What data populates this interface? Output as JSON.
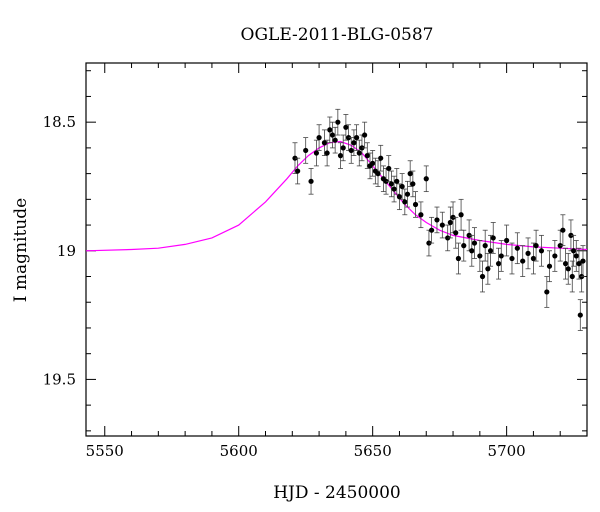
{
  "chart_data": {
    "type": "scatter",
    "title": "OGLE-2011-BLG-0587",
    "xlabel": "HJD - 2450000",
    "ylabel": "I magnitude",
    "xlim": [
      5543,
      5730
    ],
    "ylim": [
      19.72,
      18.27
    ],
    "y_inverted": true,
    "xticks": [
      5550,
      5600,
      5650,
      5700
    ],
    "yticks": [
      18.5,
      19,
      19.5
    ],
    "ytick_labels": [
      "18.5",
      "19",
      "19.5"
    ],
    "grid": false,
    "legend": "none",
    "colors": {
      "points": "#000000",
      "model": "#ff00ff"
    },
    "series": [
      {
        "type": "scatter",
        "points": [
          [
            5621,
            18.64,
            0.06
          ],
          [
            5622,
            18.69,
            0.05
          ],
          [
            5625,
            18.61,
            0.05
          ],
          [
            5627,
            18.73,
            0.05
          ],
          [
            5629,
            18.62,
            0.05
          ],
          [
            5630,
            18.56,
            0.05
          ],
          [
            5632,
            18.58,
            0.05
          ],
          [
            5633,
            18.62,
            0.05
          ],
          [
            5634,
            18.53,
            0.05
          ],
          [
            5635,
            18.55,
            0.05
          ],
          [
            5636,
            18.57,
            0.05
          ],
          [
            5637,
            18.5,
            0.05
          ],
          [
            5638,
            18.63,
            0.05
          ],
          [
            5639,
            18.6,
            0.05
          ],
          [
            5640,
            18.52,
            0.05
          ],
          [
            5641,
            18.56,
            0.05
          ],
          [
            5642,
            18.61,
            0.05
          ],
          [
            5643,
            18.58,
            0.05
          ],
          [
            5644,
            18.56,
            0.05
          ],
          [
            5645,
            18.62,
            0.05
          ],
          [
            5646,
            18.6,
            0.05
          ],
          [
            5647,
            18.55,
            0.05
          ],
          [
            5648,
            18.63,
            0.05
          ],
          [
            5649,
            18.67,
            0.05
          ],
          [
            5650,
            18.66,
            0.05
          ],
          [
            5651,
            18.69,
            0.05
          ],
          [
            5652,
            18.7,
            0.05
          ],
          [
            5653,
            18.64,
            0.05
          ],
          [
            5654,
            18.72,
            0.05
          ],
          [
            5655,
            18.73,
            0.05
          ],
          [
            5656,
            18.68,
            0.05
          ],
          [
            5657,
            18.74,
            0.05
          ],
          [
            5658,
            18.76,
            0.05
          ],
          [
            5659,
            18.73,
            0.05
          ],
          [
            5660,
            18.79,
            0.05
          ],
          [
            5661,
            18.75,
            0.05
          ],
          [
            5662,
            18.81,
            0.05
          ],
          [
            5663,
            18.78,
            0.05
          ],
          [
            5664,
            18.7,
            0.05
          ],
          [
            5665,
            18.74,
            0.05
          ],
          [
            5666,
            18.82,
            0.05
          ],
          [
            5668,
            18.86,
            0.05
          ],
          [
            5670,
            18.72,
            0.05
          ],
          [
            5671,
            18.97,
            0.05
          ],
          [
            5672,
            18.92,
            0.05
          ],
          [
            5674,
            18.88,
            0.05
          ],
          [
            5676,
            18.9,
            0.05
          ],
          [
            5678,
            18.95,
            0.05
          ],
          [
            5679,
            18.89,
            0.06
          ],
          [
            5680,
            18.87,
            0.06
          ],
          [
            5681,
            18.93,
            0.06
          ],
          [
            5682,
            19.03,
            0.06
          ],
          [
            5683,
            18.86,
            0.06
          ],
          [
            5684,
            18.98,
            0.06
          ],
          [
            5686,
            18.94,
            0.06
          ],
          [
            5687,
            19.0,
            0.06
          ],
          [
            5688,
            18.97,
            0.06
          ],
          [
            5690,
            19.02,
            0.06
          ],
          [
            5691,
            19.1,
            0.06
          ],
          [
            5692,
            18.98,
            0.06
          ],
          [
            5693,
            19.07,
            0.06
          ],
          [
            5694,
            19.0,
            0.06
          ],
          [
            5695,
            18.95,
            0.06
          ],
          [
            5697,
            19.05,
            0.06
          ],
          [
            5698,
            19.02,
            0.06
          ],
          [
            5700,
            18.96,
            0.06
          ],
          [
            5702,
            19.03,
            0.06
          ],
          [
            5704,
            18.99,
            0.06
          ],
          [
            5706,
            19.04,
            0.06
          ],
          [
            5708,
            19.01,
            0.06
          ],
          [
            5710,
            19.03,
            0.06
          ],
          [
            5711,
            18.98,
            0.06
          ],
          [
            5713,
            19.0,
            0.06
          ],
          [
            5715,
            19.16,
            0.06
          ],
          [
            5716,
            19.06,
            0.06
          ],
          [
            5718,
            19.02,
            0.06
          ],
          [
            5720,
            18.98,
            0.06
          ],
          [
            5721,
            18.92,
            0.06
          ],
          [
            5722,
            19.05,
            0.06
          ],
          [
            5723,
            19.07,
            0.06
          ],
          [
            5724,
            18.94,
            0.06
          ],
          [
            5724.5,
            19.1,
            0.06
          ],
          [
            5725,
            19.0,
            0.06
          ],
          [
            5726,
            19.02,
            0.06
          ],
          [
            5727,
            19.05,
            0.06
          ],
          [
            5727.5,
            19.25,
            0.06
          ],
          [
            5728,
            19.1,
            0.06
          ],
          [
            5728.5,
            19.04,
            0.06
          ]
        ]
      },
      {
        "type": "line",
        "points": [
          [
            5543,
            19.0
          ],
          [
            5560,
            18.995
          ],
          [
            5570,
            18.99
          ],
          [
            5580,
            18.975
          ],
          [
            5590,
            18.95
          ],
          [
            5600,
            18.9
          ],
          [
            5610,
            18.81
          ],
          [
            5618,
            18.72
          ],
          [
            5622,
            18.67
          ],
          [
            5626,
            18.63
          ],
          [
            5630,
            18.6
          ],
          [
            5634,
            18.58
          ],
          [
            5638,
            18.575
          ],
          [
            5642,
            18.59
          ],
          [
            5646,
            18.62
          ],
          [
            5650,
            18.67
          ],
          [
            5654,
            18.72
          ],
          [
            5658,
            18.77
          ],
          [
            5662,
            18.82
          ],
          [
            5666,
            18.86
          ],
          [
            5670,
            18.89
          ],
          [
            5675,
            18.92
          ],
          [
            5680,
            18.94
          ],
          [
            5690,
            18.96
          ],
          [
            5700,
            18.975
          ],
          [
            5710,
            18.985
          ],
          [
            5720,
            18.99
          ],
          [
            5730,
            18.995
          ]
        ]
      }
    ]
  }
}
